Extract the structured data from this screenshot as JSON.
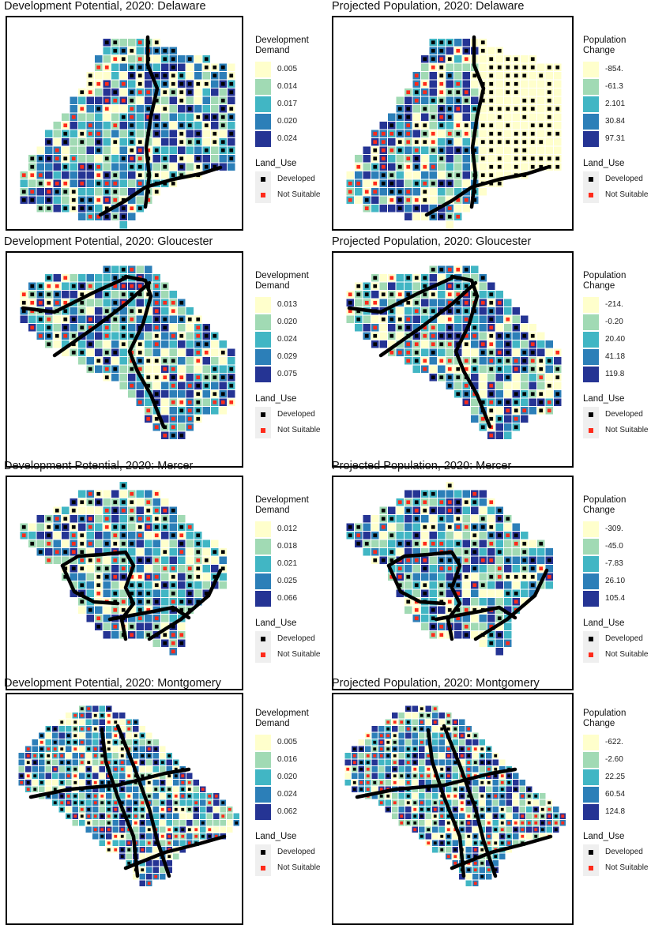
{
  "colors": {
    "demand": [
      "#ffffcc",
      "#a1dab4",
      "#41b6c4",
      "#2c7fb8",
      "#253494"
    ],
    "developed": "#000000",
    "not_suitable": "#ff2a1a",
    "road": "#000000"
  },
  "land_use": {
    "title": "Land_Use",
    "items": [
      {
        "label": "Developed",
        "icon": "black-square-marker"
      },
      {
        "label": "Not Suitable",
        "icon": "red-square-marker"
      }
    ]
  },
  "legend_titles": {
    "demand": "Development Demand",
    "population": "Population Change"
  },
  "rows": [
    {
      "county": "Delaware",
      "dev": {
        "title": "Development Potential, 2020: Delaware",
        "breaks": [
          "0.005",
          "0.014",
          "0.017",
          "0.020",
          "0.024"
        ]
      },
      "pop": {
        "title": "Projected Population, 2020: Delaware",
        "breaks": [
          "-854.",
          "-61.3",
          "2.101",
          "30.84",
          "97.31"
        ]
      }
    },
    {
      "county": "Gloucester",
      "dev": {
        "title": "Development Potential, 2020: Gloucester",
        "breaks": [
          "0.013",
          "0.020",
          "0.024",
          "0.029",
          "0.075"
        ]
      },
      "pop": {
        "title": "Projected Population, 2020: Gloucester",
        "breaks": [
          "-214.",
          "-0.20",
          "20.40",
          "41.18",
          "119.8"
        ]
      }
    },
    {
      "county": "Mercer",
      "dev": {
        "title": "Development Potential, 2020: Mercer",
        "breaks": [
          "0.012",
          "0.018",
          "0.021",
          "0.025",
          "0.066"
        ]
      },
      "pop": {
        "title": "Projected Population, 2020: Mercer",
        "breaks": [
          "-309.",
          "-45.0",
          "-7.83",
          "26.10",
          "105.4"
        ]
      }
    },
    {
      "county": "Montgomery",
      "dev": {
        "title": "Development Potential, 2020: Montgomery",
        "breaks": [
          "0.005",
          "0.016",
          "0.020",
          "0.024",
          "0.062"
        ]
      },
      "pop": {
        "title": "Projected Population, 2020: Montgomery",
        "breaks": [
          "-622.",
          "-2.60",
          "22.25",
          "60.54",
          "124.8"
        ]
      }
    }
  ]
}
